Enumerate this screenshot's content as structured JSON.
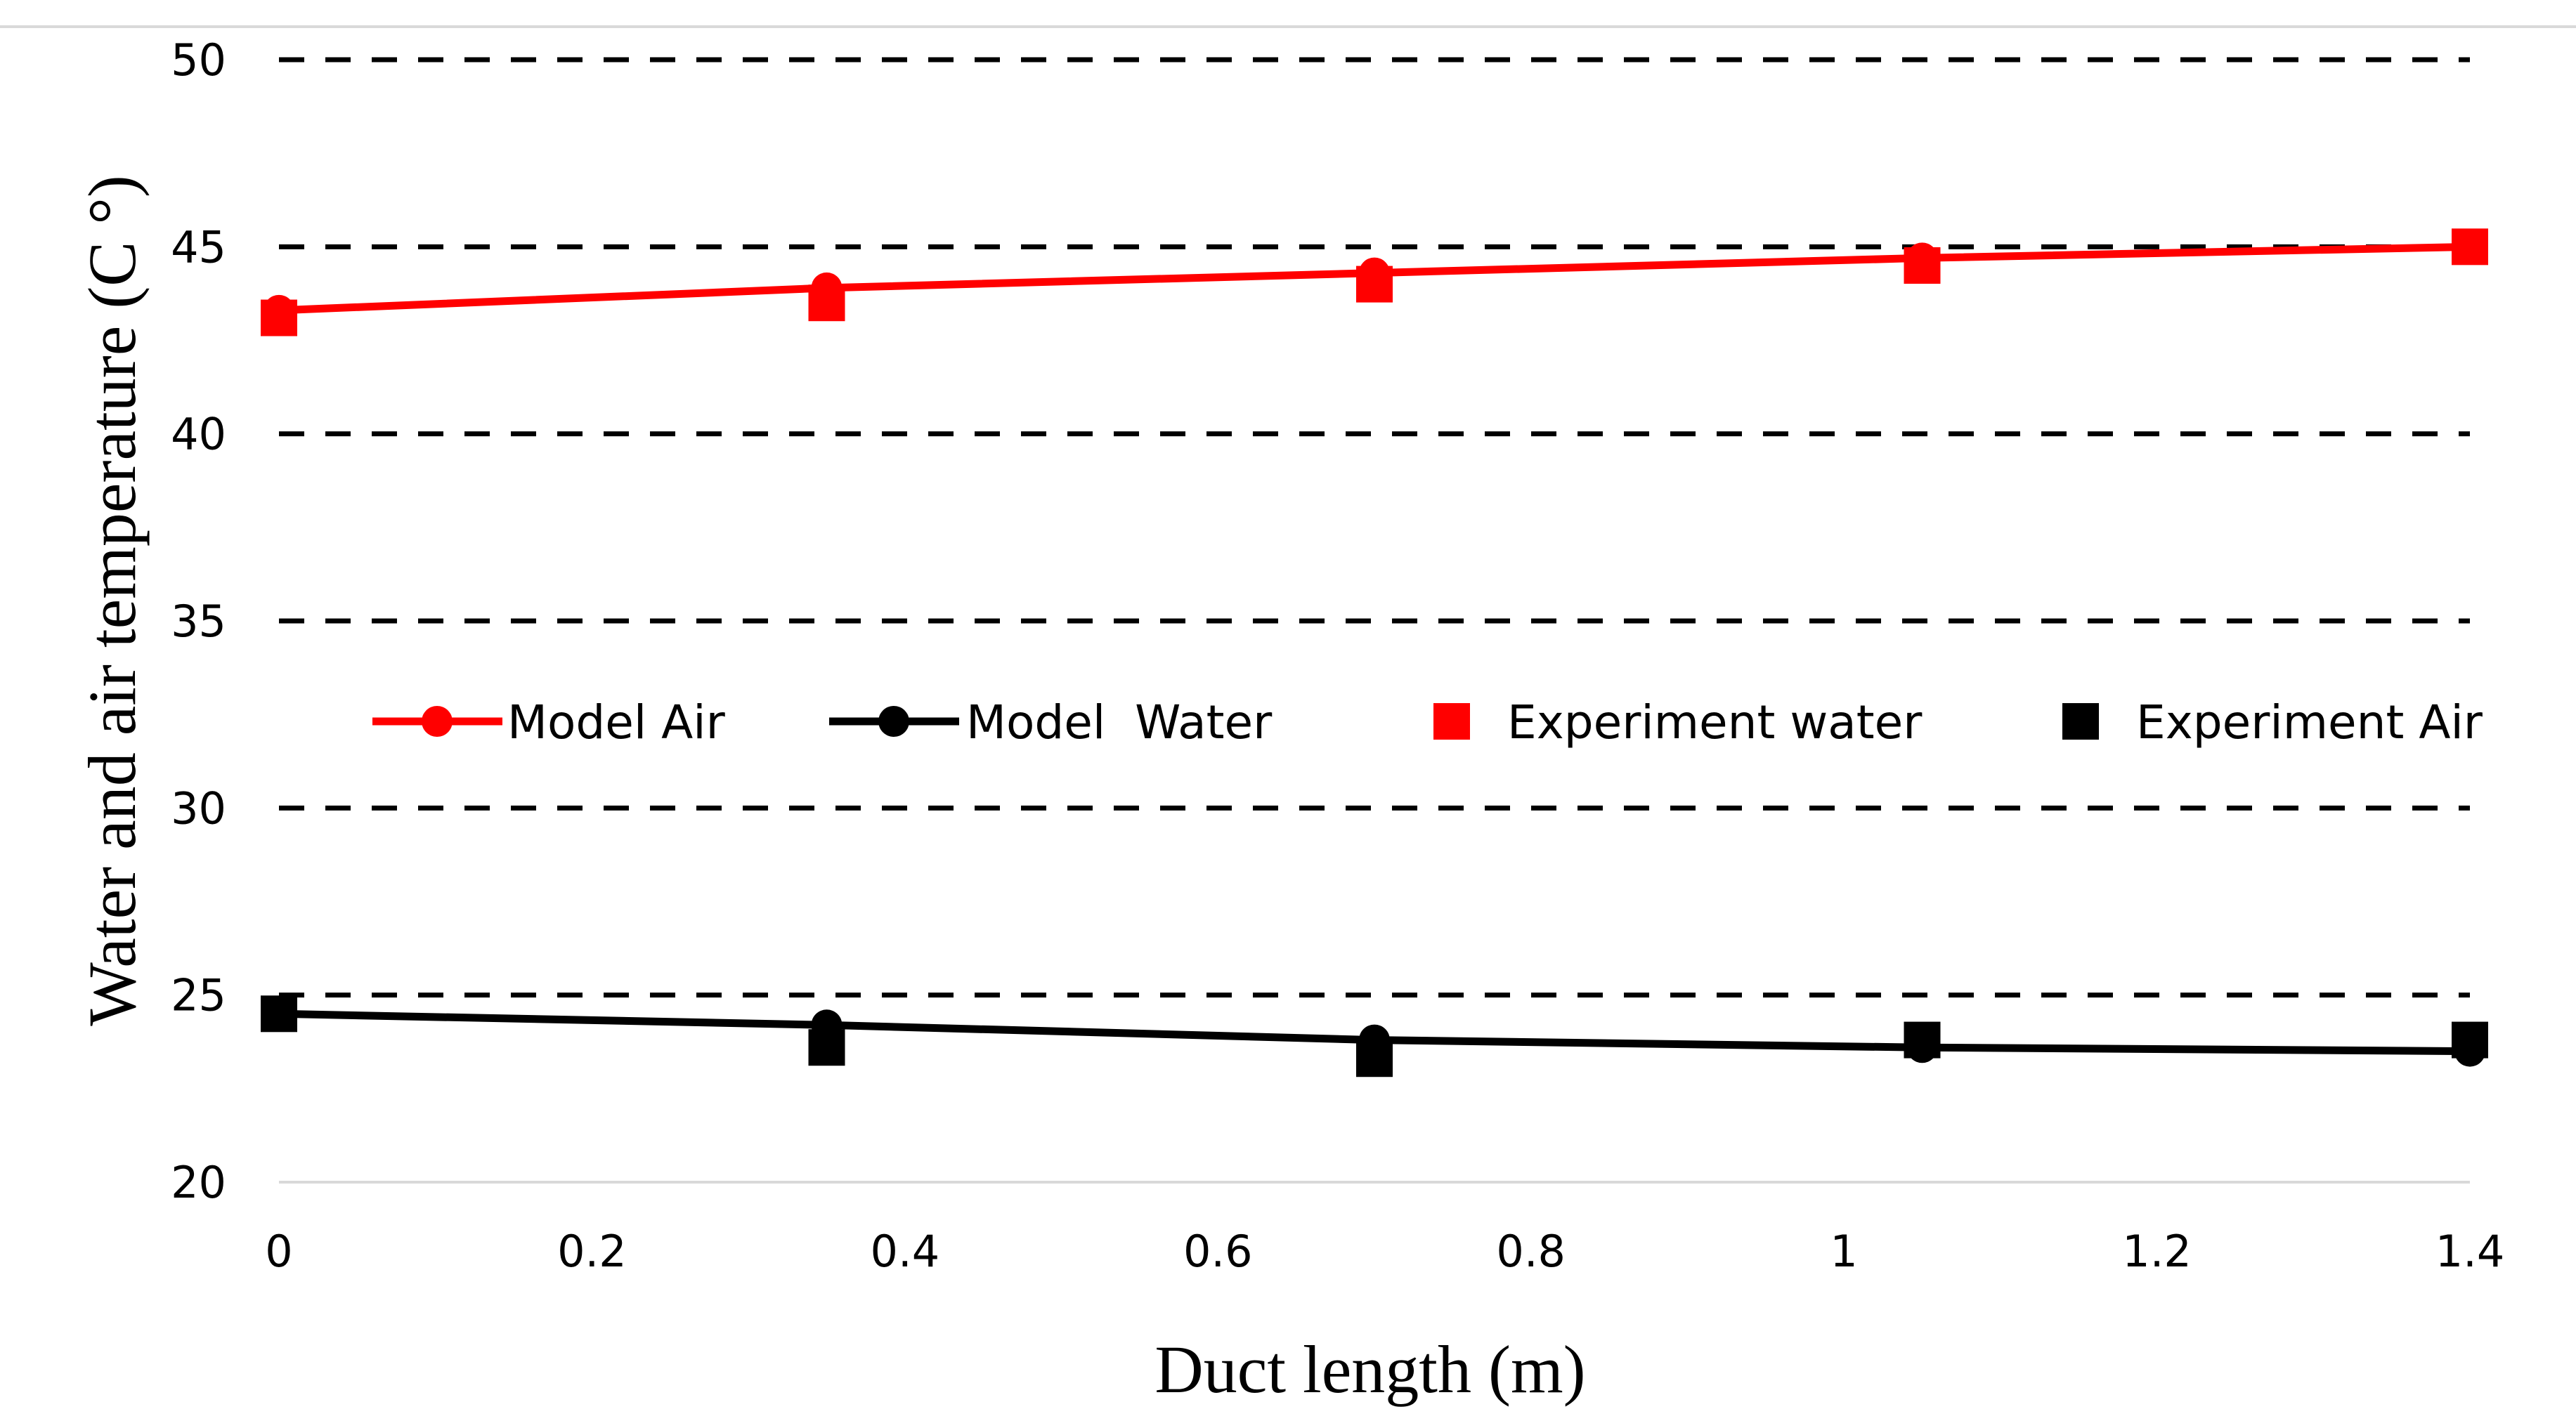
{
  "chart_data": {
    "type": "line",
    "title": "",
    "xlabel": "Duct length (m)",
    "ylabel": "Water and air temperature (C °)",
    "xlim": [
      0,
      1.4
    ],
    "ylim": [
      20,
      50
    ],
    "x_ticks": [
      "0",
      "0.2",
      "0.4",
      "0.6",
      "0.8",
      "1",
      "1.2",
      "1.4"
    ],
    "y_ticks": [
      "20",
      "25",
      "30",
      "35",
      "40",
      "45",
      "50"
    ],
    "grid": "dashed horizontal",
    "legend_position": "middle",
    "series": [
      {
        "name": "Model Air",
        "color": "#ff0000",
        "style": "line-circle",
        "x": [
          0,
          0.35,
          0.7,
          1.05,
          1.4
        ],
        "y": [
          43.3,
          43.9,
          44.3,
          44.7,
          45.0
        ]
      },
      {
        "name": "Model  Water",
        "color": "#000000",
        "style": "line-circle",
        "x": [
          0,
          0.35,
          0.7,
          1.05,
          1.4
        ],
        "y": [
          24.5,
          24.2,
          23.8,
          23.6,
          23.5
        ]
      },
      {
        "name": "Experiment water",
        "color": "#ff0000",
        "style": "square",
        "x": [
          0,
          0.35,
          0.7,
          1.05,
          1.4
        ],
        "y": [
          43.1,
          43.5,
          44.0,
          44.5,
          45.0
        ]
      },
      {
        "name": "Experiment Air",
        "color": "#000000",
        "style": "square",
        "x": [
          0,
          0.35,
          0.7,
          1.05,
          1.4
        ],
        "y": [
          24.5,
          23.6,
          23.3,
          23.8,
          23.8
        ]
      }
    ]
  }
}
